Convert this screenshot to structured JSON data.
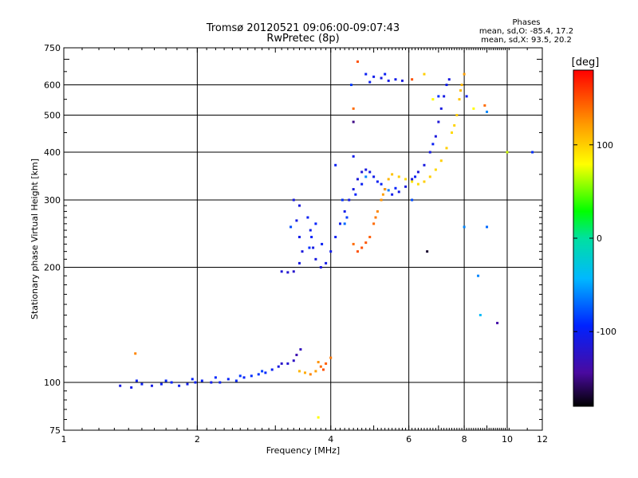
{
  "header": {
    "title": "Tromsø 20120521 09:06:00-09:07:43",
    "subtitle": "RwPretec (8p)"
  },
  "phases": {
    "heading": "Phases",
    "line_o": "mean, sd,O: -85.4, 17.2",
    "line_x": "mean, sd,X:  93.5, 20.2"
  },
  "colorbar": {
    "label": "[deg]",
    "range": [
      -180,
      180
    ],
    "ticks": [
      {
        "value": 100,
        "label": "100"
      },
      {
        "value": 0,
        "label": "0"
      },
      {
        "value": -100,
        "label": "-100"
      }
    ]
  },
  "chart_data": {
    "type": "scatter",
    "title": "Tromsø 20120521 09:06:00-09:07:43",
    "subtitle": "RwPretec (8p)",
    "xlabel": "Frequency [MHz]",
    "ylabel": "Stationary phase Virtual Height [km]",
    "x_scale": "log",
    "y_scale": "log",
    "xlim": [
      1,
      12
    ],
    "ylim": [
      75,
      750
    ],
    "grid": true,
    "xticks": [
      {
        "v": 1,
        "l": "1"
      },
      {
        "v": 2,
        "l": "2"
      },
      {
        "v": 4,
        "l": "4"
      },
      {
        "v": 6,
        "l": "6"
      },
      {
        "v": 8,
        "l": "8"
      },
      {
        "v": 10,
        "l": "10"
      },
      {
        "v": 12,
        "l": "12"
      }
    ],
    "yticks": [
      {
        "v": 75,
        "l": "75"
      },
      {
        "v": 100,
        "l": "100"
      },
      {
        "v": 200,
        "l": "200"
      },
      {
        "v": 300,
        "l": "300"
      },
      {
        "v": 400,
        "l": "400"
      },
      {
        "v": 500,
        "l": "500"
      },
      {
        "v": 600,
        "l": "600"
      },
      {
        "v": 750,
        "l": "750"
      }
    ],
    "color_key": "phase [deg]",
    "points": [
      [
        1.34,
        98,
        -110
      ],
      [
        1.42,
        97,
        -105
      ],
      [
        1.5,
        99,
        -100
      ],
      [
        1.58,
        98,
        -108
      ],
      [
        1.66,
        99,
        -100
      ],
      [
        1.75,
        100,
        -95
      ],
      [
        1.82,
        98,
        -102
      ],
      [
        1.9,
        99,
        -104
      ],
      [
        1.98,
        100,
        -100
      ],
      [
        2.05,
        101,
        -98
      ],
      [
        2.15,
        100,
        -105
      ],
      [
        2.25,
        100,
        -100
      ],
      [
        2.35,
        102,
        -96
      ],
      [
        2.45,
        101,
        -92
      ],
      [
        2.55,
        103,
        -95
      ],
      [
        2.65,
        104,
        -90
      ],
      [
        2.75,
        105,
        -88
      ],
      [
        2.85,
        106,
        -92
      ],
      [
        2.95,
        108,
        -100
      ],
      [
        3.05,
        110,
        -110
      ],
      [
        3.2,
        112,
        -118
      ],
      [
        3.3,
        114,
        -125
      ],
      [
        1.46,
        101,
        -98
      ],
      [
        1.7,
        101,
        -94
      ],
      [
        1.95,
        102,
        -96
      ],
      [
        2.2,
        103,
        -92
      ],
      [
        2.5,
        104,
        -88
      ],
      [
        2.8,
        107,
        -84
      ],
      [
        3.1,
        112,
        -122
      ],
      [
        3.35,
        118,
        -135
      ],
      [
        3.42,
        122,
        -128
      ],
      [
        1.45,
        119,
        130
      ],
      [
        3.4,
        107,
        110
      ],
      [
        3.5,
        106,
        115
      ],
      [
        3.6,
        105,
        130
      ],
      [
        3.7,
        107,
        120
      ],
      [
        3.8,
        110,
        140
      ],
      [
        3.9,
        112,
        145
      ],
      [
        4.0,
        116,
        135
      ],
      [
        3.75,
        113,
        125
      ],
      [
        3.85,
        108,
        150
      ],
      [
        3.75,
        81,
        80
      ],
      [
        3.1,
        195,
        -115
      ],
      [
        3.2,
        194,
        -118
      ],
      [
        3.3,
        195,
        -120
      ],
      [
        3.4,
        205,
        -110
      ],
      [
        3.45,
        220,
        -112
      ],
      [
        3.4,
        240,
        -105
      ],
      [
        3.35,
        265,
        -108
      ],
      [
        3.4,
        290,
        -112
      ],
      [
        3.55,
        270,
        -100
      ],
      [
        3.6,
        250,
        -105
      ],
      [
        3.65,
        225,
        -108
      ],
      [
        3.7,
        210,
        -110
      ],
      [
        3.8,
        200,
        -112
      ],
      [
        3.9,
        205,
        -108
      ],
      [
        4.0,
        220,
        -105
      ],
      [
        4.1,
        240,
        -100
      ],
      [
        4.2,
        260,
        -102
      ],
      [
        4.3,
        280,
        -105
      ],
      [
        4.4,
        300,
        -108
      ],
      [
        4.5,
        320,
        -110
      ],
      [
        4.6,
        340,
        -112
      ],
      [
        4.7,
        355,
        -115
      ],
      [
        4.8,
        360,
        -110
      ],
      [
        4.9,
        355,
        -108
      ],
      [
        5.0,
        345,
        -105
      ],
      [
        5.1,
        335,
        -100
      ],
      [
        5.3,
        320,
        -102
      ],
      [
        5.5,
        310,
        -105
      ],
      [
        5.7,
        315,
        -108
      ],
      [
        5.9,
        325,
        -110
      ],
      [
        6.1,
        340,
        -112
      ],
      [
        6.3,
        355,
        -115
      ],
      [
        6.5,
        370,
        -110
      ],
      [
        6.7,
        400,
        -108
      ],
      [
        6.9,
        440,
        -112
      ],
      [
        7.0,
        480,
        -115
      ],
      [
        7.1,
        520,
        -110
      ],
      [
        7.2,
        560,
        -108
      ],
      [
        7.3,
        600,
        -105
      ],
      [
        7.4,
        620,
        -110
      ],
      [
        3.58,
        225,
        -90
      ],
      [
        3.62,
        240,
        -95
      ],
      [
        3.7,
        260,
        -95
      ],
      [
        3.82,
        230,
        -100
      ],
      [
        4.25,
        300,
        -90
      ],
      [
        4.35,
        270,
        -85
      ],
      [
        4.55,
        310,
        -95
      ],
      [
        4.7,
        330,
        -100
      ],
      [
        5.2,
        330,
        -98
      ],
      [
        5.6,
        322,
        -95
      ],
      [
        6.2,
        345,
        -100
      ],
      [
        6.8,
        420,
        -100
      ],
      [
        4.3,
        260,
        -70
      ],
      [
        4.8,
        345,
        -60
      ],
      [
        5.4,
        318,
        -65
      ],
      [
        4.5,
        230,
        140
      ],
      [
        4.7,
        225,
        150
      ],
      [
        4.9,
        240,
        145
      ],
      [
        5.0,
        260,
        140
      ],
      [
        5.1,
        280,
        130
      ],
      [
        5.2,
        300,
        125
      ],
      [
        5.3,
        320,
        120
      ],
      [
        5.4,
        340,
        110
      ],
      [
        5.5,
        350,
        105
      ],
      [
        5.7,
        345,
        100
      ],
      [
        5.9,
        340,
        95
      ],
      [
        6.1,
        335,
        90
      ],
      [
        6.3,
        330,
        95
      ],
      [
        6.5,
        335,
        100
      ],
      [
        6.7,
        345,
        100
      ],
      [
        6.9,
        360,
        95
      ],
      [
        7.1,
        380,
        100
      ],
      [
        7.3,
        410,
        100
      ],
      [
        7.5,
        450,
        95
      ],
      [
        7.7,
        500,
        100
      ],
      [
        7.8,
        550,
        105
      ],
      [
        7.9,
        600,
        110
      ],
      [
        8.0,
        640,
        120
      ],
      [
        4.6,
        220,
        150
      ],
      [
        4.8,
        232,
        148
      ],
      [
        5.05,
        270,
        135
      ],
      [
        5.25,
        310,
        120
      ],
      [
        7.6,
        470,
        98
      ],
      [
        7.85,
        580,
        108
      ],
      [
        4.8,
        640,
        -100
      ],
      [
        5.0,
        630,
        -105
      ],
      [
        5.2,
        625,
        -110
      ],
      [
        5.4,
        615,
        -108
      ],
      [
        5.6,
        620,
        -105
      ],
      [
        5.8,
        615,
        -110
      ],
      [
        4.9,
        610,
        -100
      ],
      [
        5.3,
        640,
        -100
      ],
      [
        4.45,
        600,
        -85
      ],
      [
        4.5,
        520,
        140
      ],
      [
        4.5,
        480,
        -150
      ],
      [
        4.6,
        690,
        150
      ],
      [
        6.1,
        620,
        150
      ],
      [
        6.5,
        640,
        100
      ],
      [
        6.8,
        550,
        80
      ],
      [
        7.0,
        560,
        -90
      ],
      [
        8.1,
        560,
        -100
      ],
      [
        8.4,
        520,
        80
      ],
      [
        8.9,
        530,
        140
      ],
      [
        9.0,
        510,
        -60
      ],
      [
        10.0,
        400,
        70
      ],
      [
        11.4,
        400,
        -90
      ],
      [
        8.6,
        190,
        -60
      ],
      [
        8.7,
        150,
        -40
      ],
      [
        9.5,
        143,
        -140
      ],
      [
        9.0,
        255,
        -70
      ],
      [
        8.0,
        255,
        -60
      ],
      [
        6.6,
        220,
        -170
      ],
      [
        6.1,
        300,
        -80
      ],
      [
        3.25,
        255,
        -80
      ],
      [
        3.3,
        300,
        -110
      ],
      [
        4.1,
        370,
        -100
      ],
      [
        4.5,
        390,
        -105
      ]
    ]
  }
}
